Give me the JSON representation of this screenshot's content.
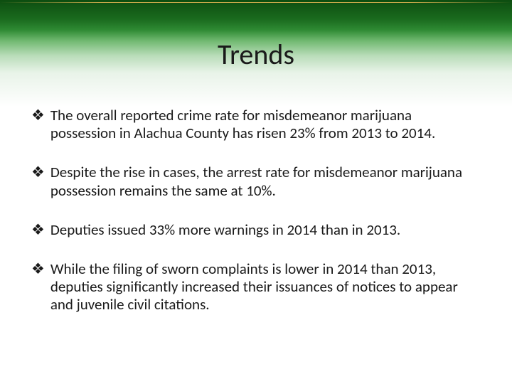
{
  "title": "Trends",
  "header": {
    "gradient_top": "#0d4d10",
    "gradient_mid": "#2e8a33",
    "gradient_bottom": "#ffffff",
    "accent_line_color": "#c9a84a"
  },
  "bullets": [
    "The overall reported crime rate for misdemeanor marijuana possession in Alachua County has risen 23% from 2013 to 2014.",
    "Despite the rise in cases, the arrest rate for misdemeanor marijuana possession remains the same at 10%.",
    "Deputies issued 33% more warnings in 2014 than in 2013.",
    "While the filing of sworn complaints is lower in 2014 than 2013, deputies significantly increased their issuances of notices to appear and juvenile civil citations."
  ],
  "bullet_marker": "❖",
  "text_color": "#1a1a1a",
  "title_fontsize": 40,
  "body_fontsize": 21,
  "background_color": "#ffffff"
}
